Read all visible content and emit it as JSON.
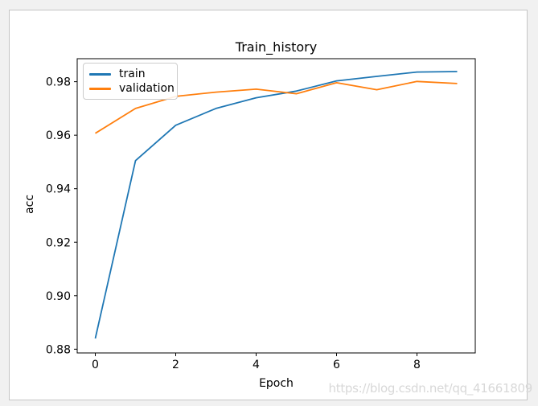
{
  "figure": {
    "title": "Train_history",
    "xlabel": "Epoch",
    "ylabel": "acc"
  },
  "legend": {
    "position": "upper left",
    "items": [
      "train",
      "validation"
    ]
  },
  "watermark": "https://blog.csdn.net/qq_41661809",
  "colors": {
    "train_line": "#1f77b4",
    "validation_line": "#ff7f0e",
    "page_background": "#f1f1f1",
    "figure_background": "#ffffff",
    "figure_border": "#c5c5c5",
    "spine": "#000000",
    "legend_border": "#cccccc",
    "watermark_text": "#d8d8d8"
  },
  "chart_data": {
    "type": "line",
    "title": "Train_history",
    "xlabel": "Epoch",
    "ylabel": "acc",
    "x": [
      0,
      1,
      2,
      3,
      4,
      5,
      6,
      7,
      8,
      9
    ],
    "series": [
      {
        "name": "train",
        "color": "#1f77b4",
        "values": [
          0.884,
          0.9505,
          0.9637,
          0.97,
          0.974,
          0.9765,
          0.9803,
          0.982,
          0.9836,
          0.9838
        ]
      },
      {
        "name": "validation",
        "color": "#ff7f0e",
        "values": [
          0.9607,
          0.97,
          0.9745,
          0.9761,
          0.9772,
          0.9755,
          0.9796,
          0.977,
          0.9801,
          0.9793
        ]
      }
    ],
    "xlim": [
      -0.45,
      9.45
    ],
    "ylim": [
      0.8786,
      0.9886
    ],
    "xticks": [
      0,
      2,
      4,
      6,
      8
    ],
    "xtick_labels": [
      "0",
      "2",
      "4",
      "6",
      "8"
    ],
    "yticks": [
      0.88,
      0.9,
      0.92,
      0.94,
      0.96,
      0.98
    ],
    "ytick_labels": [
      "0.88",
      "0.90",
      "0.92",
      "0.94",
      "0.96",
      "0.98"
    ],
    "grid": false,
    "legend_position": "upper left"
  }
}
